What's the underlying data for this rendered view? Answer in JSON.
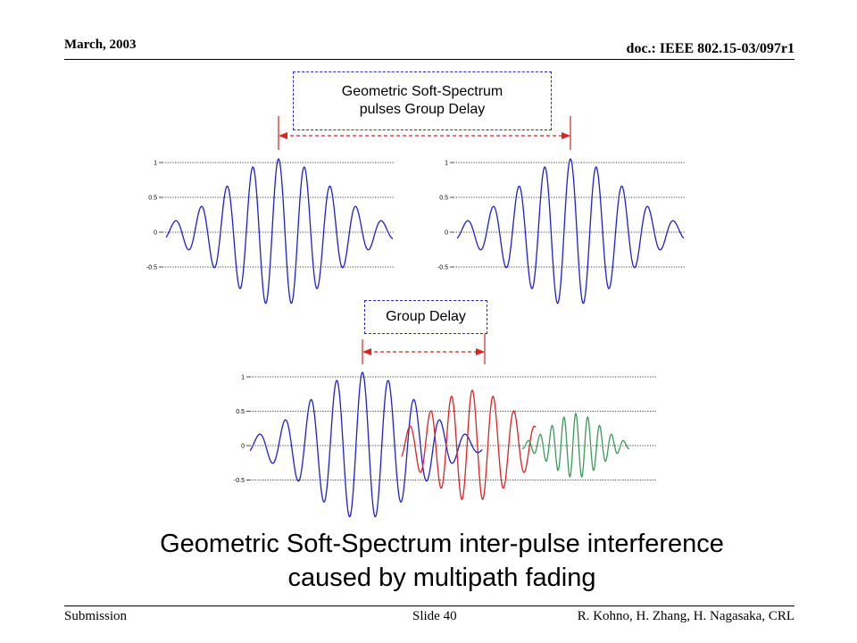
{
  "header": {
    "date": "March, 2003",
    "doc_id": "doc.: IEEE 802.15-03/097r1"
  },
  "footer": {
    "submission": "Submission",
    "slide": "Slide 40",
    "authors": "R. Kohno, H. Zhang, H. Nagasaka, CRL"
  },
  "labels": {
    "top_box_line1": "Geometric Soft-Spectrum",
    "top_box_line2": "pulses Group Delay",
    "mid_box": "Group Delay"
  },
  "caption": {
    "line1": "Geometric Soft-Spectrum inter-pulse interference",
    "line2": "caused by multipath fading"
  },
  "plots": {
    "tick_labels": [
      "1",
      "0.5",
      "0",
      "-0.5"
    ],
    "tick_values": [
      1,
      0.5,
      0,
      -0.5
    ]
  },
  "colors": {
    "pulse_blue": "#2020c8",
    "pulse_red": "#dd2222",
    "pulse_green": "#3a9a5a",
    "arrow_red": "#dd2222",
    "box_border": "#2a2ad0"
  }
}
